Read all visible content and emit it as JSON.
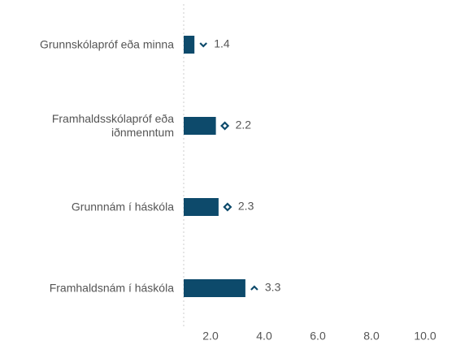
{
  "chart_data": {
    "type": "bar",
    "orientation": "horizontal",
    "categories": [
      "Grunnskólapróf eða minna",
      "Framhaldsskólapróf eða iðnmenntum",
      "Grunnnám í háskóla",
      "Framhaldsnám í háskóla"
    ],
    "values": [
      1.4,
      2.2,
      2.3,
      3.3
    ],
    "color": "#0d4a6b",
    "xlim": [
      1,
      11
    ],
    "xticks": [
      {
        "value": 2,
        "label": "2.0"
      },
      {
        "value": 4,
        "label": "4.0"
      },
      {
        "value": 6,
        "label": "6.0"
      },
      {
        "value": 8,
        "label": "8.0"
      },
      {
        "value": 10,
        "label": "10.0"
      }
    ]
  }
}
